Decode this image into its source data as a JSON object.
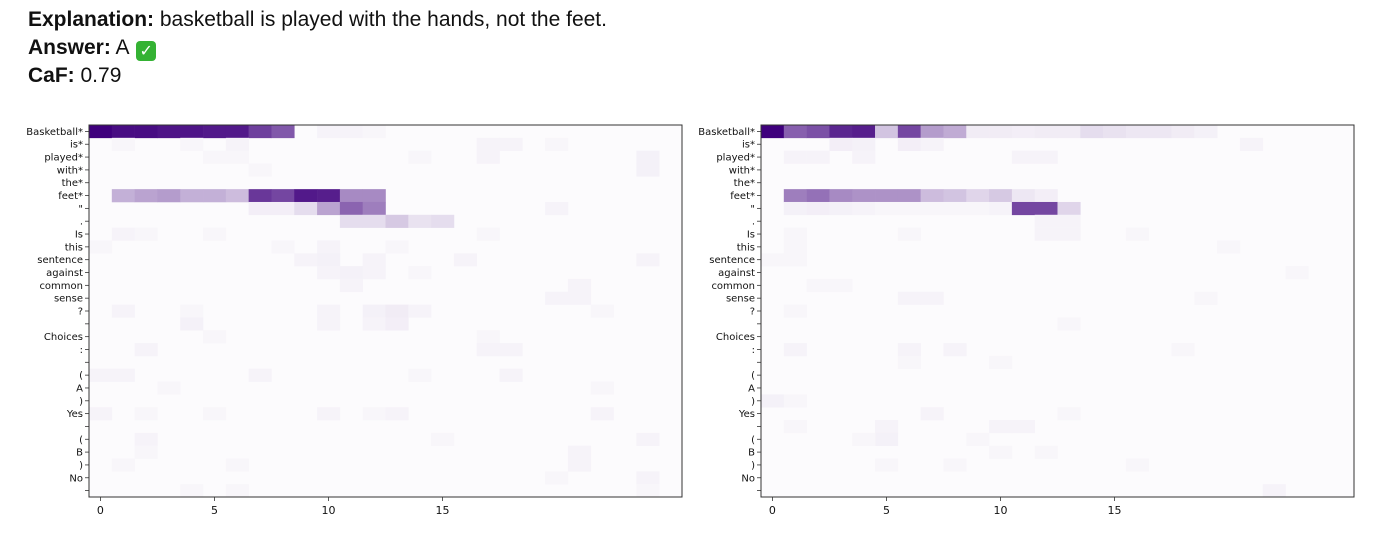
{
  "header": {
    "explanation_label": "Explanation:",
    "explanation_text": " basketball is played with the hands, not the feet.",
    "answer_label": "Answer:",
    "answer_value": " A",
    "answer_icon": "green-check-icon",
    "caf_label": "CaF:",
    "caf_value": " 0.79"
  },
  "colors": {
    "cell_max": "#3f007d",
    "cell_min": "#fcfbfd",
    "frame": "#333333"
  },
  "chart_data": [
    {
      "type": "heatmap",
      "colormap": "Purples",
      "xlim": [
        -0.5,
        25.5
      ],
      "x_ticks": [
        0,
        5,
        10,
        15
      ],
      "y_labels": [
        "Basketball*",
        "is*",
        "played*",
        "with*",
        "the*",
        "feet*",
        "\"",
        ".",
        "Is",
        "this",
        "sentence",
        "against",
        "common",
        "sense",
        "?",
        "",
        "Choices",
        ":",
        "",
        "(",
        "A",
        ")",
        "Yes",
        "",
        "(",
        "B",
        ")",
        "No",
        ""
      ],
      "cells": [
        [
          0,
          0,
          1.0
        ],
        [
          1,
          0,
          0.95
        ],
        [
          2,
          0,
          0.95
        ],
        [
          3,
          0,
          0.92
        ],
        [
          4,
          0,
          0.92
        ],
        [
          5,
          0,
          0.9
        ],
        [
          6,
          0,
          0.9
        ],
        [
          7,
          0,
          0.75
        ],
        [
          8,
          0,
          0.65
        ],
        [
          10,
          0,
          0.03
        ],
        [
          11,
          0,
          0.03
        ],
        [
          12,
          0,
          0.02
        ],
        [
          1,
          5,
          0.3
        ],
        [
          2,
          5,
          0.35
        ],
        [
          3,
          5,
          0.38
        ],
        [
          4,
          5,
          0.3
        ],
        [
          5,
          5,
          0.3
        ],
        [
          6,
          5,
          0.25
        ],
        [
          7,
          5,
          0.78
        ],
        [
          8,
          5,
          0.72
        ],
        [
          9,
          5,
          0.9
        ],
        [
          10,
          5,
          0.88
        ],
        [
          11,
          5,
          0.45
        ],
        [
          12,
          5,
          0.45
        ],
        [
          7,
          6,
          0.05
        ],
        [
          8,
          6,
          0.05
        ],
        [
          9,
          6,
          0.12
        ],
        [
          10,
          6,
          0.35
        ],
        [
          11,
          6,
          0.6
        ],
        [
          12,
          6,
          0.5
        ],
        [
          20,
          6,
          0.03
        ],
        [
          11,
          7,
          0.12
        ],
        [
          12,
          7,
          0.12
        ],
        [
          13,
          7,
          0.2
        ],
        [
          14,
          7,
          0.1
        ],
        [
          15,
          7,
          0.12
        ],
        [
          1,
          1,
          0.02
        ],
        [
          4,
          1,
          0.02
        ],
        [
          6,
          1,
          0.03
        ],
        [
          17,
          1,
          0.03
        ],
        [
          18,
          1,
          0.03
        ],
        [
          20,
          1,
          0.02
        ],
        [
          5,
          2,
          0.02
        ],
        [
          6,
          2,
          0.02
        ],
        [
          14,
          2,
          0.02
        ],
        [
          17,
          2,
          0.03
        ],
        [
          24,
          2,
          0.04
        ],
        [
          7,
          3,
          0.02
        ],
        [
          24,
          3,
          0.04
        ],
        [
          1,
          8,
          0.03
        ],
        [
          2,
          8,
          0.02
        ],
        [
          5,
          8,
          0.02
        ],
        [
          17,
          8,
          0.02
        ],
        [
          0,
          9,
          0.02
        ],
        [
          8,
          9,
          0.02
        ],
        [
          10,
          9,
          0.03
        ],
        [
          13,
          9,
          0.02
        ],
        [
          9,
          10,
          0.03
        ],
        [
          10,
          10,
          0.04
        ],
        [
          12,
          10,
          0.03
        ],
        [
          16,
          10,
          0.03
        ],
        [
          24,
          10,
          0.03
        ],
        [
          10,
          11,
          0.03
        ],
        [
          11,
          11,
          0.04
        ],
        [
          12,
          11,
          0.03
        ],
        [
          14,
          11,
          0.02
        ],
        [
          11,
          12,
          0.03
        ],
        [
          21,
          12,
          0.03
        ],
        [
          20,
          13,
          0.03
        ],
        [
          21,
          13,
          0.03
        ],
        [
          1,
          14,
          0.03
        ],
        [
          4,
          14,
          0.02
        ],
        [
          10,
          14,
          0.03
        ],
        [
          12,
          14,
          0.04
        ],
        [
          13,
          14,
          0.06
        ],
        [
          14,
          14,
          0.03
        ],
        [
          22,
          14,
          0.02
        ],
        [
          4,
          15,
          0.04
        ],
        [
          10,
          15,
          0.03
        ],
        [
          12,
          15,
          0.03
        ],
        [
          13,
          15,
          0.05
        ],
        [
          5,
          16,
          0.02
        ],
        [
          17,
          16,
          0.02
        ],
        [
          2,
          17,
          0.03
        ],
        [
          17,
          17,
          0.03
        ],
        [
          18,
          17,
          0.03
        ],
        [
          0,
          19,
          0.03
        ],
        [
          1,
          19,
          0.03
        ],
        [
          7,
          19,
          0.03
        ],
        [
          14,
          19,
          0.02
        ],
        [
          18,
          19,
          0.03
        ],
        [
          3,
          20,
          0.02
        ],
        [
          22,
          20,
          0.02
        ],
        [
          0,
          22,
          0.03
        ],
        [
          2,
          22,
          0.02
        ],
        [
          5,
          22,
          0.02
        ],
        [
          10,
          22,
          0.03
        ],
        [
          12,
          22,
          0.02
        ],
        [
          13,
          22,
          0.03
        ],
        [
          22,
          22,
          0.03
        ],
        [
          2,
          24,
          0.03
        ],
        [
          15,
          24,
          0.02
        ],
        [
          24,
          24,
          0.03
        ],
        [
          2,
          25,
          0.02
        ],
        [
          21,
          25,
          0.03
        ],
        [
          1,
          26,
          0.02
        ],
        [
          6,
          26,
          0.02
        ],
        [
          21,
          26,
          0.03
        ],
        [
          20,
          27,
          0.02
        ],
        [
          24,
          27,
          0.03
        ],
        [
          4,
          28,
          0.02
        ],
        [
          6,
          28,
          0.02
        ],
        [
          24,
          28,
          0.02
        ]
      ]
    },
    {
      "type": "heatmap",
      "colormap": "Purples",
      "xlim": [
        -0.5,
        25.5
      ],
      "x_ticks": [
        0,
        5,
        10,
        15
      ],
      "y_labels": [
        "Basketball*",
        "is*",
        "played*",
        "with*",
        "the*",
        "feet*",
        "\"",
        ".",
        "Is",
        "this",
        "sentence",
        "against",
        "common",
        "sense",
        "?",
        "",
        "Choices",
        ":",
        "",
        "(",
        "A",
        ")",
        "Yes",
        "",
        "(",
        "B",
        ")",
        "No",
        ""
      ],
      "cells": [
        [
          0,
          0,
          1.0
        ],
        [
          1,
          0,
          0.62
        ],
        [
          2,
          0,
          0.68
        ],
        [
          3,
          0,
          0.85
        ],
        [
          4,
          0,
          0.88
        ],
        [
          5,
          0,
          0.22
        ],
        [
          6,
          0,
          0.72
        ],
        [
          7,
          0,
          0.38
        ],
        [
          8,
          0,
          0.32
        ],
        [
          9,
          0,
          0.06
        ],
        [
          10,
          0,
          0.06
        ],
        [
          11,
          0,
          0.05
        ],
        [
          12,
          0,
          0.06
        ],
        [
          13,
          0,
          0.06
        ],
        [
          14,
          0,
          0.12
        ],
        [
          15,
          0,
          0.1
        ],
        [
          16,
          0,
          0.08
        ],
        [
          17,
          0,
          0.08
        ],
        [
          18,
          0,
          0.06
        ],
        [
          19,
          0,
          0.04
        ],
        [
          3,
          1,
          0.05
        ],
        [
          4,
          1,
          0.04
        ],
        [
          6,
          1,
          0.05
        ],
        [
          7,
          1,
          0.03
        ],
        [
          21,
          1,
          0.03
        ],
        [
          1,
          2,
          0.03
        ],
        [
          2,
          2,
          0.03
        ],
        [
          4,
          2,
          0.03
        ],
        [
          11,
          2,
          0.03
        ],
        [
          12,
          2,
          0.03
        ],
        [
          1,
          5,
          0.5
        ],
        [
          2,
          5,
          0.55
        ],
        [
          3,
          5,
          0.45
        ],
        [
          4,
          5,
          0.42
        ],
        [
          5,
          5,
          0.42
        ],
        [
          6,
          5,
          0.42
        ],
        [
          7,
          5,
          0.25
        ],
        [
          8,
          5,
          0.22
        ],
        [
          9,
          5,
          0.15
        ],
        [
          10,
          5,
          0.2
        ],
        [
          11,
          5,
          0.08
        ],
        [
          12,
          5,
          0.05
        ],
        [
          1,
          6,
          0.04
        ],
        [
          2,
          6,
          0.05
        ],
        [
          3,
          6,
          0.04
        ],
        [
          4,
          6,
          0.03
        ],
        [
          5,
          6,
          0.02
        ],
        [
          6,
          6,
          0.02
        ],
        [
          7,
          6,
          0.02
        ],
        [
          8,
          6,
          0.02
        ],
        [
          9,
          6,
          0.02
        ],
        [
          10,
          6,
          0.03
        ],
        [
          11,
          6,
          0.72
        ],
        [
          12,
          6,
          0.72
        ],
        [
          13,
          6,
          0.15
        ],
        [
          12,
          7,
          0.03
        ],
        [
          13,
          7,
          0.03
        ],
        [
          1,
          8,
          0.02
        ],
        [
          6,
          8,
          0.02
        ],
        [
          12,
          8,
          0.03
        ],
        [
          13,
          8,
          0.03
        ],
        [
          16,
          8,
          0.02
        ],
        [
          1,
          9,
          0.02
        ],
        [
          20,
          9,
          0.02
        ],
        [
          0,
          10,
          0.02
        ],
        [
          1,
          10,
          0.02
        ],
        [
          23,
          11,
          0.02
        ],
        [
          2,
          12,
          0.02
        ],
        [
          3,
          12,
          0.02
        ],
        [
          6,
          13,
          0.03
        ],
        [
          7,
          13,
          0.03
        ],
        [
          19,
          13,
          0.02
        ],
        [
          1,
          14,
          0.02
        ],
        [
          13,
          15,
          0.02
        ],
        [
          1,
          17,
          0.03
        ],
        [
          6,
          17,
          0.03
        ],
        [
          8,
          17,
          0.03
        ],
        [
          18,
          17,
          0.02
        ],
        [
          6,
          18,
          0.02
        ],
        [
          10,
          18,
          0.02
        ],
        [
          0,
          21,
          0.04
        ],
        [
          1,
          21,
          0.02
        ],
        [
          7,
          22,
          0.03
        ],
        [
          13,
          22,
          0.02
        ],
        [
          1,
          23,
          0.02
        ],
        [
          5,
          23,
          0.03
        ],
        [
          10,
          23,
          0.03
        ],
        [
          11,
          23,
          0.03
        ],
        [
          5,
          24,
          0.04
        ],
        [
          4,
          24,
          0.02
        ],
        [
          9,
          24,
          0.02
        ],
        [
          10,
          25,
          0.02
        ],
        [
          12,
          25,
          0.02
        ],
        [
          5,
          26,
          0.02
        ],
        [
          8,
          26,
          0.02
        ],
        [
          16,
          26,
          0.02
        ],
        [
          22,
          28,
          0.03
        ]
      ]
    }
  ]
}
